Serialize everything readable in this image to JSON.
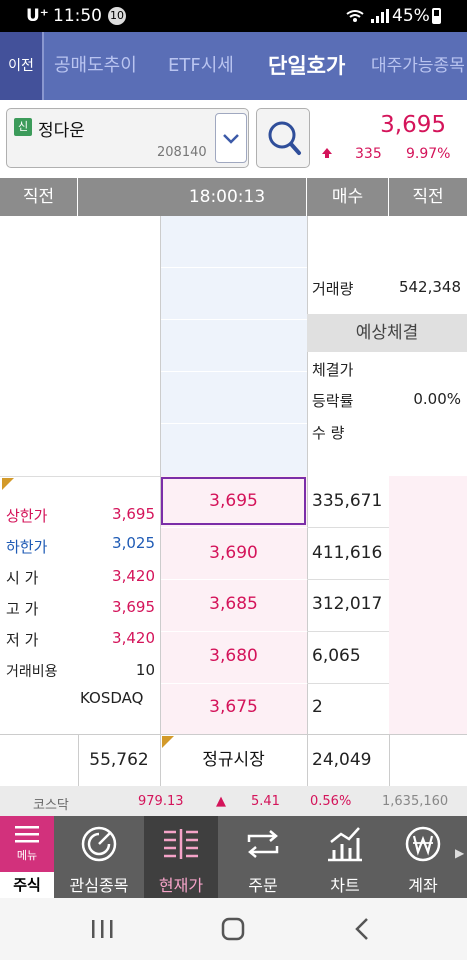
{
  "status_bar": {
    "carrier": "U⁺",
    "time": "11:50",
    "notification_count": "10",
    "battery": "45%"
  },
  "tabs": {
    "back_label": "이전",
    "items": [
      "공매도추이",
      "ETF시세",
      "단일호가",
      "대주가능종목"
    ],
    "active": "단일호가"
  },
  "stock": {
    "badge": "신",
    "name": "정다운",
    "code": "208140",
    "price": "3,695",
    "change": "335",
    "change_pct": "9.97%",
    "change_direction": "up"
  },
  "order_book": {
    "headers": {
      "prev_left": "직전",
      "time": "18:00:13",
      "buy": "매수",
      "prev_right": "직전"
    },
    "volume_label": "거래량",
    "volume": "542,348",
    "expected": {
      "title": "예상체결",
      "price_label": "체결가",
      "rate_label": "등락률",
      "rate_value": "0.00%",
      "qty_label": "수  량"
    },
    "bids": [
      {
        "price": "3,695",
        "qty": "335,671"
      },
      {
        "price": "3,690",
        "qty": "411,616"
      },
      {
        "price": "3,685",
        "qty": "312,017"
      },
      {
        "price": "3,680",
        "qty": "6,065"
      },
      {
        "price": "3,675",
        "qty": "2"
      }
    ],
    "stats": [
      {
        "label": "상한가",
        "value": "3,695",
        "color": "#d4145a"
      },
      {
        "label": "하한가",
        "value": "3,025",
        "color": "#1f5bb5"
      },
      {
        "label": "시  가",
        "value": "3,420",
        "color": "#d4145a"
      },
      {
        "label": "고  가",
        "value": "3,695",
        "color": "#d4145a"
      },
      {
        "label": "저  가",
        "value": "3,420",
        "color": "#d4145a"
      },
      {
        "label": "거래비용",
        "value": "10",
        "color": "#222222"
      }
    ],
    "market": "KOSDAQ",
    "totals": {
      "sell_total": "55,762",
      "session": "정규시장",
      "buy_total": "24,049"
    }
  },
  "market_bar": {
    "index_name": "코스닥",
    "index_value": "979.13",
    "arrow": "▲",
    "change": "5.41",
    "change_pct": "0.56%",
    "volume": "1,635,160"
  },
  "bottom_nav": {
    "menu_label": "메뉴",
    "menu_caption": "주식",
    "items": [
      {
        "label": "관심종목",
        "icon": "target-icon"
      },
      {
        "label": "현재가",
        "icon": "orderbook-icon",
        "active": true
      },
      {
        "label": "주문",
        "icon": "exchange-icon"
      },
      {
        "label": "차트",
        "icon": "chart-icon"
      },
      {
        "label": "계좌",
        "icon": "won-icon"
      }
    ]
  },
  "colors": {
    "up": "#d4145a",
    "down": "#1f5bb5",
    "tab_bar": "#5a6eb6",
    "menu": "#d2317c"
  }
}
